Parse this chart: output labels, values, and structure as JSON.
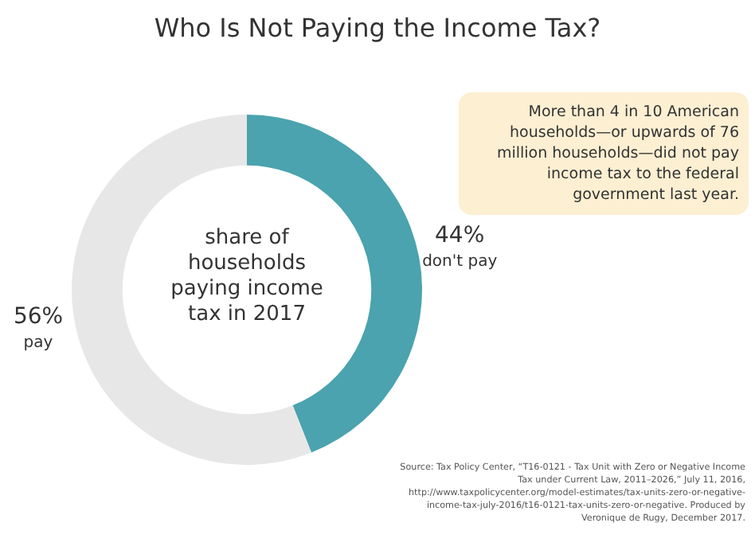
{
  "chart_data": {
    "type": "donut",
    "title": "Who Is Not Paying the Income Tax?",
    "categories": [
      "don't pay",
      "pay"
    ],
    "values": [
      44,
      56
    ],
    "value_labels": [
      "44%",
      "56%"
    ],
    "colors": [
      "#4aa3ae",
      "#e8e7e7"
    ],
    "legend": false,
    "annotations": [
      "share of households paying income tax in 2017",
      "More than 4 in 10 American households—or upwards of 76 million households—did not pay income tax to the federal government last year.",
      "Source: Tax Policy Center, “T16-0121 - Tax Unit with Zero or Negative Income Tax under Current Law, 2011–2026,” July 11, 2016, http://www.taxpolicycenter.org/model-estimates/tax-units-zero-or-negative-income-tax-july-2016/t16-0121-tax-units-zero-or-negative. Produced by Veronique de Rugy, December 2017."
    ]
  }
}
